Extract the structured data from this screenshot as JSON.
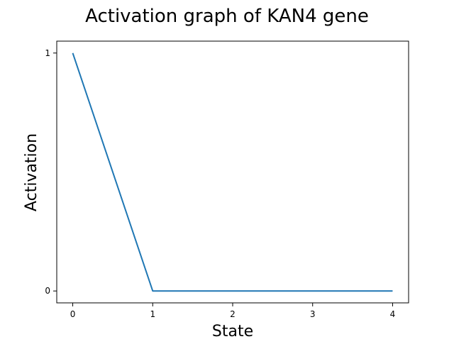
{
  "chart_data": {
    "type": "line",
    "title": "Activation graph of KAN4 gene",
    "xlabel": "State",
    "ylabel": "Activation",
    "x": [
      0,
      1,
      2,
      3,
      4
    ],
    "series": [
      {
        "values": [
          1,
          0,
          0,
          0,
          0
        ],
        "color": "#1f77b4"
      }
    ],
    "xticks": [
      0,
      1,
      2,
      3,
      4
    ],
    "yticks": [
      0,
      1
    ],
    "xlim": [
      -0.2,
      4.2
    ],
    "ylim": [
      -0.05,
      1.05
    ],
    "grid": false
  }
}
